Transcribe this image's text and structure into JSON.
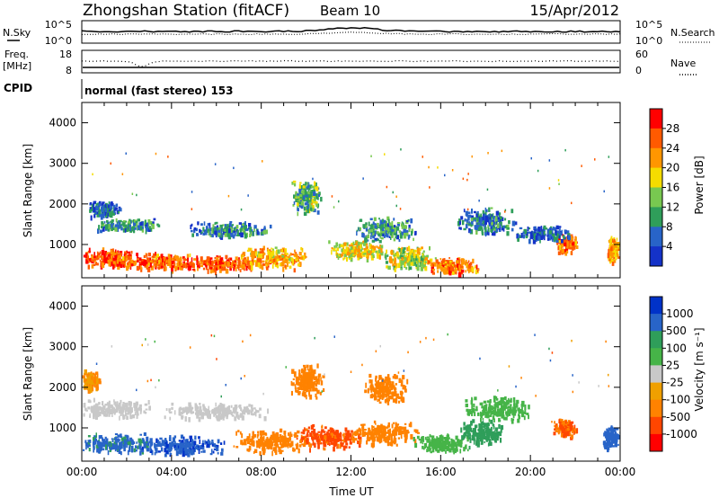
{
  "header": {
    "title": "Zhongshan Station (fitACF)",
    "beam": "Beam 10",
    "date": "15/Apr/2012"
  },
  "sky_panel": {
    "left_label": "N.Sky",
    "right_label": "N.Search",
    "left_ticks": [
      "10^5",
      "10^0"
    ],
    "right_ticks": [
      "10^5",
      "10^0"
    ]
  },
  "freq_panel": {
    "left_label_1": "Freq.",
    "left_label_2": "[MHz]",
    "right_label": "Nave",
    "left_ticks": [
      "18",
      "8"
    ],
    "right_ticks": [
      "60",
      "0"
    ]
  },
  "cpid": {
    "label": "CPID",
    "value": "normal (fast stereo) 153"
  },
  "power_colorbar": {
    "label": "Power [dB]",
    "ticks": [
      "28",
      "24",
      "20",
      "16",
      "12",
      "8",
      "4"
    ],
    "colors": [
      "#ff0000",
      "#ff5a00",
      "#ff9600",
      "#f5dc00",
      "#78c850",
      "#2f9e5a",
      "#2864c8",
      "#1432c8",
      "#0000ff"
    ]
  },
  "velocity_colorbar": {
    "label": "Velocity [m s⁻¹]",
    "ticks": [
      "1000",
      "500",
      "100",
      "25",
      "-25",
      "-100",
      "-500",
      "-1000"
    ],
    "colors": [
      "#0032c8",
      "#2864c8",
      "#2f9e5a",
      "#46b448",
      "#c8c8c8",
      "#f0a000",
      "#ff8200",
      "#ff4600",
      "#ff0000"
    ]
  },
  "chart_data": [
    {
      "type": "heatmap",
      "name": "power-panel",
      "ylabel": "Slant Range [km]",
      "y_ticks": [
        "4000",
        "3000",
        "2000",
        "1000"
      ],
      "ylim": [
        180,
        4500
      ],
      "xlim": [
        0,
        24
      ],
      "x_ticks": [
        "00:00",
        "04:00",
        "08:00",
        "12:00",
        "16:00",
        "20:00",
        "00:00"
      ],
      "value_unit": "dB",
      "blobs": [
        {
          "t": 1.2,
          "r": 700,
          "dt": 1.3,
          "dr": 230,
          "value": 26
        },
        {
          "t": 3.0,
          "r": 620,
          "dt": 2.0,
          "dr": 210,
          "value": 25
        },
        {
          "t": 6.0,
          "r": 560,
          "dt": 2.6,
          "dr": 200,
          "value": 26
        },
        {
          "t": 8.5,
          "r": 700,
          "dt": 1.6,
          "dr": 300,
          "value": 21
        },
        {
          "t": 12.2,
          "r": 900,
          "dt": 1.4,
          "dr": 260,
          "value": 18
        },
        {
          "t": 14.6,
          "r": 700,
          "dt": 1.2,
          "dr": 300,
          "value": 16
        },
        {
          "t": 16.5,
          "r": 500,
          "dt": 1.2,
          "dr": 220,
          "value": 24
        },
        {
          "t": 21.6,
          "r": 1050,
          "dt": 0.5,
          "dr": 260,
          "value": 25
        },
        {
          "t": 23.7,
          "r": 900,
          "dt": 0.3,
          "dr": 350,
          "value": 22
        },
        {
          "t": 2.0,
          "r": 1500,
          "dt": 1.5,
          "dr": 180,
          "value": 9
        },
        {
          "t": 6.5,
          "r": 1400,
          "dt": 2.0,
          "dr": 200,
          "value": 8
        },
        {
          "t": 10.0,
          "r": 2200,
          "dt": 0.7,
          "dr": 450,
          "value": 12
        },
        {
          "t": 13.5,
          "r": 1400,
          "dt": 1.5,
          "dr": 300,
          "value": 9
        },
        {
          "t": 18.0,
          "r": 1600,
          "dt": 1.4,
          "dr": 350,
          "value": 7
        },
        {
          "t": 20.5,
          "r": 1300,
          "dt": 1.3,
          "dr": 200,
          "value": 6
        },
        {
          "t": 1.0,
          "r": 1900,
          "dt": 0.8,
          "dr": 200,
          "value": 6
        }
      ]
    },
    {
      "type": "heatmap",
      "name": "velocity-panel",
      "ylabel": "Slant Range [km]",
      "y_ticks": [
        "4000",
        "3000",
        "2000",
        "1000"
      ],
      "ylim": [
        180,
        4500
      ],
      "xlim": [
        0,
        24
      ],
      "x_ticks": [
        "00:00",
        "04:00",
        "08:00",
        "12:00",
        "16:00",
        "20:00",
        "00:00"
      ],
      "xlabel": "Time UT",
      "value_unit": "m/s",
      "blobs": [
        {
          "t": 1.5,
          "r": 650,
          "dt": 1.7,
          "dr": 250,
          "value": 600
        },
        {
          "t": 4.5,
          "r": 600,
          "dt": 2.0,
          "dr": 250,
          "value": 900
        },
        {
          "t": 8.5,
          "r": 700,
          "dt": 1.8,
          "dr": 300,
          "value": -300
        },
        {
          "t": 11.0,
          "r": 800,
          "dt": 1.5,
          "dr": 300,
          "value": -600
        },
        {
          "t": 13.5,
          "r": 900,
          "dt": 1.6,
          "dr": 300,
          "value": -200
        },
        {
          "t": 16.0,
          "r": 650,
          "dt": 1.3,
          "dr": 250,
          "value": 50
        },
        {
          "t": 17.8,
          "r": 900,
          "dt": 1.0,
          "dr": 350,
          "value": 150
        },
        {
          "t": 21.5,
          "r": 1000,
          "dt": 0.6,
          "dr": 250,
          "value": -500
        },
        {
          "t": 23.6,
          "r": 800,
          "dt": 0.4,
          "dr": 300,
          "value": 700
        },
        {
          "t": 1.5,
          "r": 1500,
          "dt": 1.6,
          "dr": 250,
          "value": 0
        },
        {
          "t": 6.0,
          "r": 1450,
          "dt": 2.5,
          "dr": 200,
          "value": 10
        },
        {
          "t": 10.0,
          "r": 2200,
          "dt": 0.8,
          "dr": 450,
          "value": -200
        },
        {
          "t": 13.5,
          "r": 2000,
          "dt": 1.0,
          "dr": 400,
          "value": -300
        },
        {
          "t": 18.5,
          "r": 1500,
          "dt": 1.5,
          "dr": 300,
          "value": 80
        },
        {
          "t": 0.4,
          "r": 2200,
          "dt": 0.4,
          "dr": 250,
          "value": -100
        }
      ]
    }
  ]
}
